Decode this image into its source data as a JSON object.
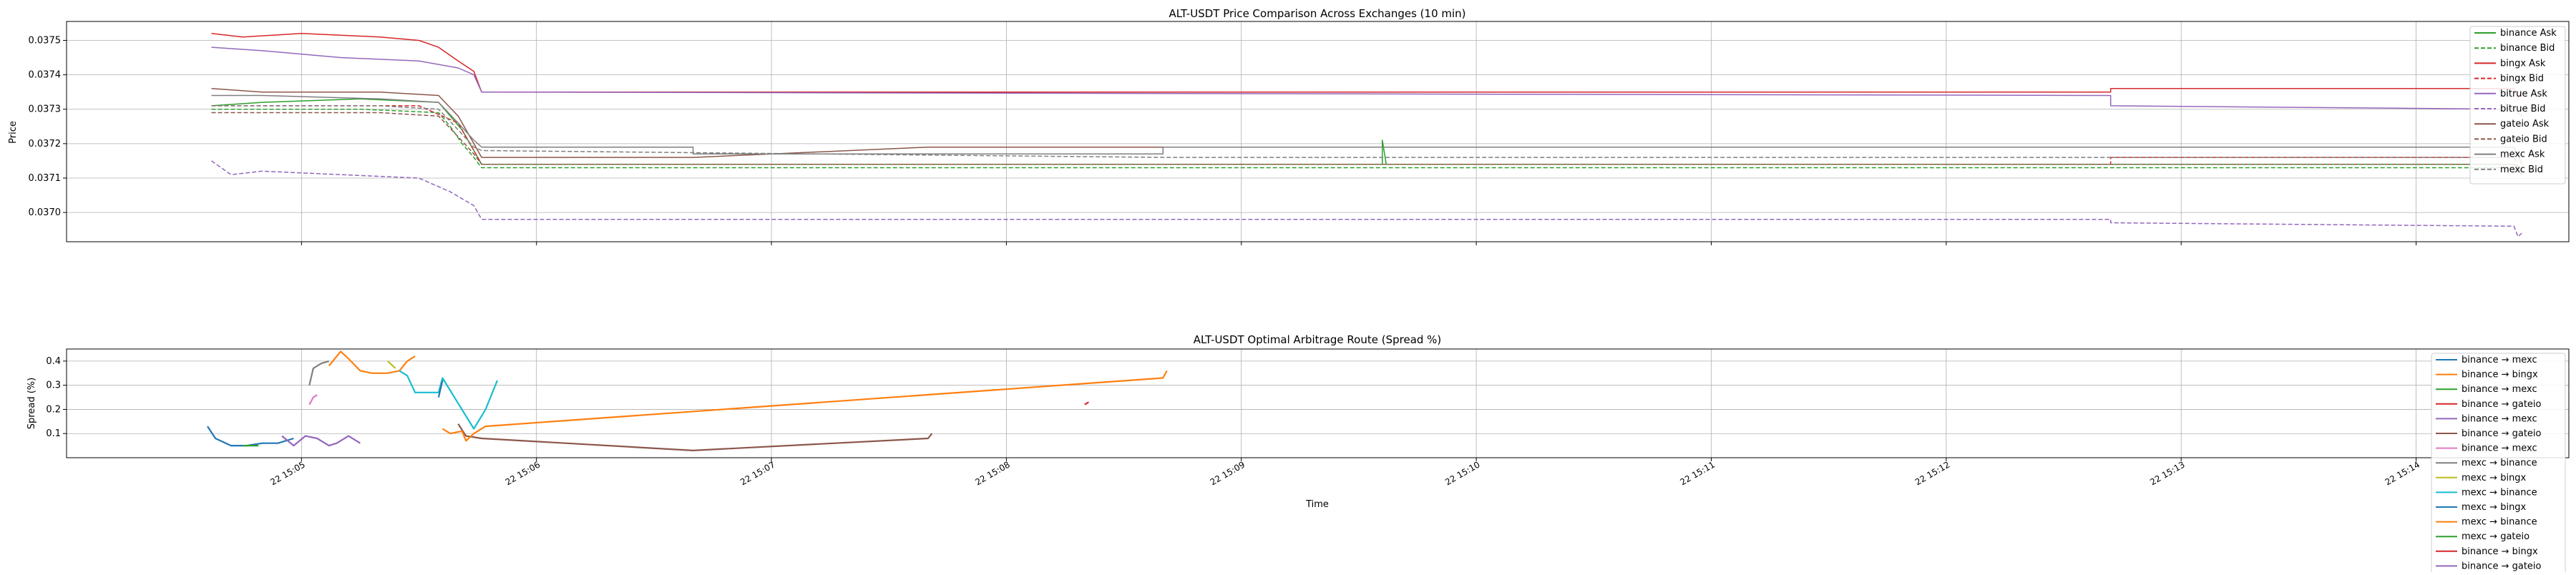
{
  "chart_data": [
    {
      "type": "line",
      "title": "ALT-USDT Price Comparison Across Exchanges (10 min)",
      "xlabel": "",
      "ylabel": "Price",
      "ylim": [
        0.036915,
        0.037555
      ],
      "yticks": [
        "0.0370",
        "0.0371",
        "0.0372",
        "0.0373",
        "0.0374",
        "0.0375"
      ],
      "grid": true,
      "legend_position": "upper right",
      "series": [
        {
          "name": "binance Ask",
          "color": "#2ca02c",
          "dash": "solid",
          "points": [
            [
              "15:04:37",
              0.03731
            ],
            [
              "15:04:50",
              0.03732
            ],
            [
              "15:05:15",
              0.03733
            ],
            [
              "15:05:35",
              0.03732
            ],
            [
              "15:05:38",
              0.03728
            ],
            [
              "15:05:41",
              0.03724
            ],
            [
              "15:05:44",
              0.03718
            ],
            [
              "15:05:46",
              0.03714
            ],
            [
              "15:09:36",
              0.03714
            ],
            [
              "15:09:36",
              0.03721
            ],
            [
              "15:09:37",
              0.03714
            ],
            [
              "15:14:25",
              0.03714
            ],
            [
              "15:14:27",
              0.03712
            ]
          ]
        },
        {
          "name": "binance Bid",
          "color": "#2ca02c",
          "dash": "dashed",
          "points": [
            [
              "15:04:37",
              0.0373
            ],
            [
              "15:04:50",
              0.0373
            ],
            [
              "15:05:15",
              0.0373
            ],
            [
              "15:05:35",
              0.03729
            ],
            [
              "15:05:38",
              0.03725
            ],
            [
              "15:05:41",
              0.0372
            ],
            [
              "15:05:44",
              0.03716
            ],
            [
              "15:05:46",
              0.03713
            ],
            [
              "15:09:36",
              0.03713
            ],
            [
              "15:12:42",
              0.03713
            ],
            [
              "15:14:25",
              0.03713
            ],
            [
              "15:14:27",
              0.03711
            ]
          ]
        },
        {
          "name": "bingx Ask",
          "color": "#d62728",
          "dash": "solid",
          "points": [
            [
              "15:04:37",
              0.03752
            ],
            [
              "15:04:45",
              0.03751
            ],
            [
              "15:05:00",
              0.03752
            ],
            [
              "15:05:20",
              0.03751
            ],
            [
              "15:05:30",
              0.0375
            ],
            [
              "15:05:35",
              0.03748
            ],
            [
              "15:05:40",
              0.03744
            ],
            [
              "15:05:44",
              0.03741
            ],
            [
              "15:05:46",
              0.03735
            ],
            [
              "15:12:42",
              0.03735
            ],
            [
              "15:12:42",
              0.03736
            ],
            [
              "15:14:25",
              0.03736
            ],
            [
              "15:14:26",
              0.03733
            ],
            [
              "15:14:27",
              0.03735
            ]
          ]
        },
        {
          "name": "bingx Bid",
          "color": "#d62728",
          "dash": "dashed",
          "points": [
            [
              "15:04:37",
              0.03731
            ],
            [
              "15:05:30",
              0.03731
            ],
            [
              "15:05:40",
              0.03726
            ],
            [
              "15:05:46",
              0.03714
            ],
            [
              "15:12:42",
              0.03714
            ],
            [
              "15:12:42",
              0.03716
            ],
            [
              "15:14:25",
              0.03716
            ],
            [
              "15:14:27",
              0.03711
            ]
          ]
        },
        {
          "name": "bitrue Ask",
          "color": "#9467bd",
          "dash": "solid",
          "points": [
            [
              "15:04:37",
              0.03748
            ],
            [
              "15:04:50",
              0.03747
            ],
            [
              "15:05:10",
              0.03745
            ],
            [
              "15:05:30",
              0.03744
            ],
            [
              "15:05:40",
              0.03742
            ],
            [
              "15:05:44",
              0.0374
            ],
            [
              "15:05:46",
              0.03735
            ],
            [
              "15:12:42",
              0.03734
            ],
            [
              "15:12:42",
              0.03731
            ],
            [
              "15:14:25",
              0.0373
            ],
            [
              "15:14:27",
              0.03728
            ]
          ]
        },
        {
          "name": "bitrue Bid",
          "color": "#9467bd",
          "dash": "dashed",
          "points": [
            [
              "15:04:37",
              0.03715
            ],
            [
              "15:04:42",
              0.03711
            ],
            [
              "15:04:50",
              0.03712
            ],
            [
              "15:05:10",
              0.03711
            ],
            [
              "15:05:30",
              0.0371
            ],
            [
              "15:05:38",
              0.03706
            ],
            [
              "15:05:44",
              0.03702
            ],
            [
              "15:05:46",
              0.03698
            ],
            [
              "15:12:42",
              0.03698
            ],
            [
              "15:12:42",
              0.03697
            ],
            [
              "15:14:25",
              0.03696
            ],
            [
              "15:14:26",
              0.03693
            ],
            [
              "15:14:27",
              0.03694
            ]
          ]
        },
        {
          "name": "gateio Ask",
          "color": "#8c564b",
          "dash": "solid",
          "points": [
            [
              "15:04:37",
              0.03736
            ],
            [
              "15:04:50",
              0.03735
            ],
            [
              "15:05:20",
              0.03735
            ],
            [
              "15:05:35",
              0.03734
            ],
            [
              "15:05:40",
              0.03728
            ],
            [
              "15:05:44",
              0.0372
            ],
            [
              "15:05:46",
              0.03716
            ],
            [
              "15:06:40",
              0.03716
            ],
            [
              "15:07:40",
              0.03719
            ],
            [
              "15:14:25",
              0.03719
            ],
            [
              "15:14:27",
              0.03714
            ]
          ]
        },
        {
          "name": "gateio Bid",
          "color": "#8c564b",
          "dash": "dashed",
          "points": [
            [
              "15:04:37",
              0.03729
            ],
            [
              "15:04:50",
              0.03729
            ],
            [
              "15:05:20",
              0.03729
            ],
            [
              "15:05:35",
              0.03728
            ],
            [
              "15:05:40",
              0.03722
            ],
            [
              "15:05:44",
              0.03717
            ],
            [
              "15:05:46",
              0.03714
            ],
            [
              "15:07:40",
              0.03714
            ],
            [
              "15:14:25",
              0.03714
            ],
            [
              "15:14:27",
              0.03712
            ]
          ]
        },
        {
          "name": "mexc Ask",
          "color": "#7f7f7f",
          "dash": "solid",
          "points": [
            [
              "15:04:37",
              0.03734
            ],
            [
              "15:04:50",
              0.03734
            ],
            [
              "15:05:20",
              0.03733
            ],
            [
              "15:05:35",
              0.03732
            ],
            [
              "15:05:40",
              0.03726
            ],
            [
              "15:05:44",
              0.03721
            ],
            [
              "15:05:46",
              0.03719
            ],
            [
              "15:06:40",
              0.03719
            ],
            [
              "15:06:40",
              0.03717
            ],
            [
              "15:08:40",
              0.03717
            ],
            [
              "15:08:40",
              0.03719
            ],
            [
              "15:14:25",
              0.03719
            ]
          ]
        },
        {
          "name": "mexc Bid",
          "color": "#7f7f7f",
          "dash": "dashed",
          "points": [
            [
              "15:04:37",
              0.03731
            ],
            [
              "15:04:50",
              0.03731
            ],
            [
              "15:05:20",
              0.03731
            ],
            [
              "15:05:35",
              0.0373
            ],
            [
              "15:05:40",
              0.03724
            ],
            [
              "15:05:44",
              0.03719
            ],
            [
              "15:05:46",
              0.03718
            ],
            [
              "15:08:40",
              0.03716
            ],
            [
              "15:14:25",
              0.03716
            ]
          ]
        }
      ]
    },
    {
      "type": "line",
      "title": "ALT-USDT Optimal Arbitrage Route (Spread %)",
      "xlabel": "Time",
      "ylabel": "Spread (%)",
      "ylim": [
        0.0,
        0.45
      ],
      "yticks": [
        "0.1",
        "0.2",
        "0.3",
        "0.4"
      ],
      "grid": true,
      "legend_position": "upper right",
      "xticks": [
        "22 15:05",
        "22 15:06",
        "22 15:07",
        "22 15:08",
        "22 15:09",
        "22 15:10",
        "22 15:11",
        "22 15:12",
        "22 15:13",
        "22 15:14"
      ],
      "series": [
        {
          "name": "binance → mexc",
          "color": "#1f77b4",
          "points": [
            [
              "15:04:36",
              0.13
            ],
            [
              "15:04:38",
              0.08
            ],
            [
              "15:04:42",
              0.05
            ],
            [
              "15:04:46",
              0.05
            ],
            [
              "15:04:50",
              0.06
            ],
            [
              "15:04:54",
              0.06
            ],
            [
              "15:04:58",
              0.08
            ]
          ]
        },
        {
          "name": "binance → bingx",
          "color": "#ff7f0e",
          "points": [
            [
              "15:05:07",
              0.38
            ],
            [
              "15:05:08",
              0.4
            ],
            [
              "15:05:10",
              0.44
            ],
            [
              "15:05:12",
              0.41
            ],
            [
              "15:05:15",
              0.36
            ],
            [
              "15:05:18",
              0.35
            ],
            [
              "15:05:22",
              0.35
            ],
            [
              "15:05:25",
              0.36
            ],
            [
              "15:05:27",
              0.4
            ],
            [
              "15:05:29",
              0.42
            ]
          ]
        },
        {
          "name": "binance → mexc",
          "color": "#2ca02c",
          "points": [
            [
              "15:04:45",
              0.05
            ],
            [
              "15:04:49",
              0.05
            ]
          ]
        },
        {
          "name": "binance → gateio",
          "color": "#d62728",
          "points": [
            [
              "15:08:20",
              0.22
            ],
            [
              "15:08:21",
              0.23
            ]
          ]
        },
        {
          "name": "binance → mexc",
          "color": "#9467bd",
          "points": [
            [
              "15:04:55",
              0.09
            ],
            [
              "15:04:58",
              0.05
            ],
            [
              "15:05:01",
              0.09
            ],
            [
              "15:05:04",
              0.08
            ],
            [
              "15:05:07",
              0.05
            ],
            [
              "15:05:09",
              0.06
            ],
            [
              "15:05:12",
              0.09
            ],
            [
              "15:05:15",
              0.06
            ]
          ]
        },
        {
          "name": "binance → gateio",
          "color": "#8c564b",
          "points": [
            [
              "15:05:40",
              0.14
            ],
            [
              "15:05:42",
              0.09
            ],
            [
              "15:05:46",
              0.08
            ],
            [
              "15:06:40",
              0.03
            ],
            [
              "15:07:40",
              0.08
            ],
            [
              "15:07:41",
              0.1
            ]
          ]
        },
        {
          "name": "binance → mexc",
          "color": "#e377c2",
          "points": [
            [
              "15:05:02",
              0.22
            ],
            [
              "15:05:03",
              0.25
            ],
            [
              "15:05:04",
              0.26
            ]
          ]
        },
        {
          "name": "mexc → binance",
          "color": "#7f7f7f",
          "points": [
            [
              "15:05:02",
              0.3
            ],
            [
              "15:05:03",
              0.37
            ],
            [
              "15:05:05",
              0.39
            ],
            [
              "15:05:07",
              0.4
            ]
          ]
        },
        {
          "name": "mexc → bingx",
          "color": "#bcbd22",
          "points": [
            [
              "15:05:22",
              0.4
            ],
            [
              "15:05:24",
              0.37
            ]
          ]
        },
        {
          "name": "mexc → binance",
          "color": "#17becf",
          "points": [
            [
              "15:05:25",
              0.36
            ],
            [
              "15:05:27",
              0.34
            ],
            [
              "15:05:29",
              0.27
            ],
            [
              "15:05:35",
              0.27
            ],
            [
              "15:05:36",
              0.33
            ],
            [
              "15:05:44",
              0.12
            ],
            [
              "15:05:47",
              0.2
            ],
            [
              "15:05:50",
              0.32
            ]
          ]
        },
        {
          "name": "mexc → bingx",
          "color": "#1f77b4",
          "points": [
            [
              "15:05:35",
              0.25
            ],
            [
              "15:05:36",
              0.32
            ]
          ]
        },
        {
          "name": "mexc → binance",
          "color": "#ff7f0e",
          "points": [
            [
              "15:05:36",
              0.12
            ],
            [
              "15:05:38",
              0.1
            ],
            [
              "15:05:41",
              0.11
            ],
            [
              "15:05:42",
              0.07
            ],
            [
              "15:05:44",
              0.1
            ],
            [
              "15:05:47",
              0.13
            ],
            [
              "15:08:40",
              0.33
            ],
            [
              "15:08:41",
              0.36
            ]
          ]
        },
        {
          "name": "mexc → gateio",
          "color": "#2ca02c",
          "points": []
        },
        {
          "name": "binance → bingx",
          "color": "#d62728",
          "points": []
        },
        {
          "name": "binance → gateio",
          "color": "#9467bd",
          "points": []
        }
      ]
    }
  ]
}
